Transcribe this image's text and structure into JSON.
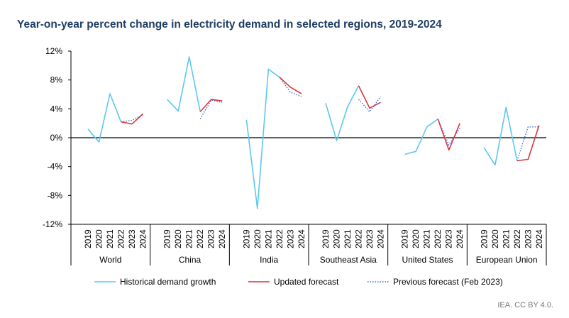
{
  "title": "Year-on-year percent change in electricity demand in selected regions, 2019-2024",
  "credit": "IEA. CC BY 4.0.",
  "colors": {
    "historical": "#5bc8ef",
    "updated": "#d9363e",
    "previous": "#3a6fd8",
    "axis": "#000000"
  },
  "chart_data": {
    "type": "line",
    "title": "Year-on-year percent change in electricity demand in selected regions, 2019-2024",
    "ylim": [
      -12,
      12
    ],
    "yticks": [
      "12%",
      "8%",
      "4%",
      "0%",
      "-4%",
      "-8%",
      "-12%"
    ],
    "ytick_values": [
      12,
      8,
      4,
      0,
      -4,
      -8,
      -12
    ],
    "grid": false,
    "legend_placement": "bottom",
    "legend": [
      "Historical demand growth",
      "Updated forecast",
      "Previous forecast (Feb 2023)"
    ],
    "groups": [
      {
        "name": "World",
        "years": [
          "2019",
          "2020",
          "2021",
          "2022",
          "2023",
          "2024"
        ],
        "historical": [
          1.2,
          -0.6,
          6.1,
          2.2
        ],
        "updated": [
          2.2,
          1.9,
          3.3
        ],
        "previous": [
          2.2,
          2.4,
          3.2
        ]
      },
      {
        "name": "China",
        "years": [
          "2019",
          "2020",
          "2021",
          "2022",
          "2023",
          "2024"
        ],
        "historical": [
          5.3,
          3.7,
          11.2,
          3.6
        ],
        "updated": [
          3.6,
          5.3,
          5.1
        ],
        "previous": [
          2.6,
          5.2,
          4.9
        ]
      },
      {
        "name": "India",
        "years": [
          "2019",
          "2020",
          "2021",
          "2022",
          "2023",
          "2024"
        ],
        "historical": [
          2.5,
          -9.8,
          9.5,
          8.4
        ],
        "updated": [
          8.4,
          7.0,
          6.1
        ],
        "previous": [
          8.4,
          6.3,
          5.7
        ]
      },
      {
        "name": "Southeast Asia",
        "years": [
          "2019",
          "2020",
          "2021",
          "2022",
          "2023",
          "2024"
        ],
        "historical": [
          4.8,
          -0.4,
          4.3,
          7.2
        ],
        "updated": [
          7.2,
          4.1,
          4.9
        ],
        "previous": [
          5.3,
          3.6,
          5.7
        ]
      },
      {
        "name": "United States",
        "years": [
          "2019",
          "2020",
          "2021",
          "2022",
          "2023",
          "2024"
        ],
        "historical": [
          -2.3,
          -1.9,
          1.5,
          2.6
        ],
        "updated": [
          2.6,
          -1.7,
          2.0
        ],
        "previous": [
          2.6,
          -1.0,
          1.3
        ]
      },
      {
        "name": "European Union",
        "years": [
          "2019",
          "2020",
          "2021",
          "2022",
          "2023",
          "2024"
        ],
        "historical": [
          -1.4,
          -3.8,
          4.2,
          -3.2
        ],
        "updated": [
          -3.2,
          -3.0,
          1.7
        ],
        "previous": [
          -3.2,
          1.5,
          1.5
        ]
      }
    ]
  }
}
